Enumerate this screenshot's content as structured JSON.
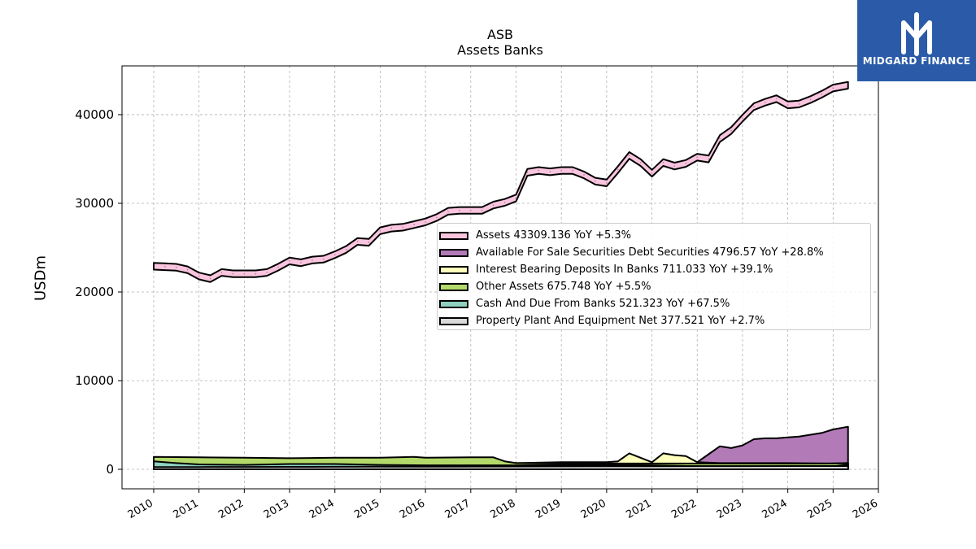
{
  "header": {
    "ticker": "ASB",
    "subtitle": "Assets Banks"
  },
  "logo": {
    "brand": "MIDGARD FINANCE",
    "icon": "midgard-logo-icon",
    "background": "#2b5ba8"
  },
  "chart_data": {
    "type": "area",
    "title": "ASB",
    "subtitle": "Assets Banks",
    "xlabel": "",
    "ylabel": "USDm",
    "xlim": [
      2009.3,
      2026.0
    ],
    "ylim": [
      -2200,
      45500
    ],
    "x_ticks": [
      "2010",
      "2011",
      "2012",
      "2013",
      "2014",
      "2015",
      "2016",
      "2017",
      "2018",
      "2019",
      "2020",
      "2021",
      "2022",
      "2023",
      "2024",
      "2025",
      "2026"
    ],
    "y_ticks": [
      "0",
      "10000",
      "20000",
      "30000",
      "40000"
    ],
    "grid": true,
    "legend_position": "center-right",
    "series": [
      {
        "name": "Assets",
        "legend": "Assets  43309.136 YoY +5.3%",
        "color": "#f9c4de",
        "points": [
          [
            2010.0,
            22900
          ],
          [
            2010.25,
            22850
          ],
          [
            2010.5,
            22780
          ],
          [
            2010.75,
            22500
          ],
          [
            2011.0,
            21800
          ],
          [
            2011.25,
            21500
          ],
          [
            2011.5,
            22200
          ],
          [
            2011.75,
            22050
          ],
          [
            2012.0,
            22050
          ],
          [
            2012.25,
            22050
          ],
          [
            2012.5,
            22200
          ],
          [
            2012.75,
            22800
          ],
          [
            2013.0,
            23500
          ],
          [
            2013.25,
            23300
          ],
          [
            2013.5,
            23600
          ],
          [
            2013.75,
            23700
          ],
          [
            2014.0,
            24200
          ],
          [
            2014.25,
            24800
          ],
          [
            2014.5,
            25700
          ],
          [
            2014.75,
            25600
          ],
          [
            2015.0,
            26900
          ],
          [
            2015.25,
            27200
          ],
          [
            2015.5,
            27300
          ],
          [
            2015.75,
            27600
          ],
          [
            2016.0,
            27900
          ],
          [
            2016.25,
            28400
          ],
          [
            2016.5,
            29100
          ],
          [
            2016.75,
            29200
          ],
          [
            2017.0,
            29200
          ],
          [
            2017.25,
            29200
          ],
          [
            2017.5,
            29800
          ],
          [
            2017.75,
            30100
          ],
          [
            2018.0,
            30600
          ],
          [
            2018.25,
            33500
          ],
          [
            2018.5,
            33700
          ],
          [
            2018.75,
            33550
          ],
          [
            2019.0,
            33700
          ],
          [
            2019.25,
            33700
          ],
          [
            2019.5,
            33200
          ],
          [
            2019.75,
            32500
          ],
          [
            2020.0,
            32300
          ],
          [
            2020.25,
            33800
          ],
          [
            2020.5,
            35400
          ],
          [
            2020.75,
            34600
          ],
          [
            2021.0,
            33400
          ],
          [
            2021.25,
            34600
          ],
          [
            2021.5,
            34200
          ],
          [
            2021.75,
            34500
          ],
          [
            2022.0,
            35200
          ],
          [
            2022.25,
            35000
          ],
          [
            2022.5,
            37300
          ],
          [
            2022.75,
            38200
          ],
          [
            2023.0,
            39600
          ],
          [
            2023.25,
            40900
          ],
          [
            2023.5,
            41400
          ],
          [
            2023.75,
            41800
          ],
          [
            2024.0,
            41100
          ],
          [
            2024.25,
            41200
          ],
          [
            2024.5,
            41700
          ],
          [
            2024.75,
            42300
          ],
          [
            2025.0,
            43000
          ],
          [
            2025.33,
            43309
          ]
        ]
      },
      {
        "name": "Available For Sale Securities Debt Securities",
        "legend": "Available For Sale Securities Debt Securities  4796.57 YoY +28.8%",
        "color": "#b27bb8",
        "points": [
          [
            2020.0,
            0
          ],
          [
            2021.75,
            0
          ],
          [
            2022.0,
            800
          ],
          [
            2022.25,
            1700
          ],
          [
            2022.5,
            2600
          ],
          [
            2022.75,
            2400
          ],
          [
            2023.0,
            2700
          ],
          [
            2023.25,
            3400
          ],
          [
            2023.5,
            3500
          ],
          [
            2023.75,
            3500
          ],
          [
            2024.0,
            3600
          ],
          [
            2024.25,
            3700
          ],
          [
            2024.5,
            3900
          ],
          [
            2024.75,
            4100
          ],
          [
            2025.0,
            4500
          ],
          [
            2025.33,
            4797
          ]
        ]
      },
      {
        "name": "Interest Bearing Deposits In Banks",
        "legend": "Interest Bearing Deposits In Banks  711.033 YoY +39.1%",
        "color": "#ffffbe",
        "points": [
          [
            2010.0,
            700
          ],
          [
            2012.0,
            800
          ],
          [
            2014.0,
            700
          ],
          [
            2016.0,
            600
          ],
          [
            2018.0,
            700
          ],
          [
            2019.0,
            800
          ],
          [
            2020.0,
            800
          ],
          [
            2020.25,
            900
          ],
          [
            2020.5,
            1800
          ],
          [
            2020.75,
            1300
          ],
          [
            2021.0,
            800
          ],
          [
            2021.25,
            1800
          ],
          [
            2021.5,
            1600
          ],
          [
            2021.75,
            1500
          ],
          [
            2022.0,
            800
          ],
          [
            2022.5,
            700
          ],
          [
            2023.0,
            700
          ],
          [
            2024.0,
            700
          ],
          [
            2025.0,
            650
          ],
          [
            2025.33,
            711
          ]
        ]
      },
      {
        "name": "Other Assets",
        "legend": "Other Assets  675.748 YoY +5.5%",
        "color": "#b3d96a",
        "points": [
          [
            2010.0,
            1400
          ],
          [
            2011.0,
            1350
          ],
          [
            2012.0,
            1300
          ],
          [
            2013.0,
            1250
          ],
          [
            2014.0,
            1300
          ],
          [
            2015.0,
            1300
          ],
          [
            2015.75,
            1400
          ],
          [
            2016.0,
            1300
          ],
          [
            2017.0,
            1350
          ],
          [
            2017.5,
            1350
          ],
          [
            2017.75,
            900
          ],
          [
            2018.0,
            700
          ],
          [
            2019.0,
            650
          ],
          [
            2020.0,
            650
          ],
          [
            2021.0,
            650
          ],
          [
            2022.0,
            650
          ],
          [
            2023.0,
            650
          ],
          [
            2024.0,
            640
          ],
          [
            2025.0,
            660
          ],
          [
            2025.33,
            676
          ]
        ]
      },
      {
        "name": "Cash And Due From Banks",
        "legend": "Cash And Due From Banks  521.323 YoY +67.5%",
        "color": "#8fd0c0",
        "points": [
          [
            2010.0,
            900
          ],
          [
            2010.5,
            700
          ],
          [
            2011.0,
            550
          ],
          [
            2012.0,
            500
          ],
          [
            2013.0,
            600
          ],
          [
            2014.0,
            600
          ],
          [
            2015.0,
            500
          ],
          [
            2016.0,
            450
          ],
          [
            2017.0,
            450
          ],
          [
            2018.0,
            450
          ],
          [
            2019.0,
            500
          ],
          [
            2020.0,
            500
          ],
          [
            2021.0,
            450
          ],
          [
            2022.0,
            350
          ],
          [
            2023.0,
            350
          ],
          [
            2024.0,
            330
          ],
          [
            2025.0,
            320
          ],
          [
            2025.33,
            521
          ]
        ]
      },
      {
        "name": "Property Plant And Equipment Net",
        "legend": "Property Plant And Equipment Net  377.521 YoY +2.7%",
        "color": "#d9d9d9",
        "points": [
          [
            2010.0,
            250
          ],
          [
            2011.0,
            260
          ],
          [
            2012.0,
            270
          ],
          [
            2013.0,
            280
          ],
          [
            2014.0,
            290
          ],
          [
            2015.0,
            300
          ],
          [
            2016.0,
            300
          ],
          [
            2017.0,
            310
          ],
          [
            2018.0,
            320
          ],
          [
            2019.0,
            330
          ],
          [
            2020.0,
            340
          ],
          [
            2021.0,
            350
          ],
          [
            2022.0,
            355
          ],
          [
            2023.0,
            360
          ],
          [
            2024.0,
            365
          ],
          [
            2025.0,
            370
          ],
          [
            2025.33,
            378
          ]
        ]
      }
    ]
  }
}
